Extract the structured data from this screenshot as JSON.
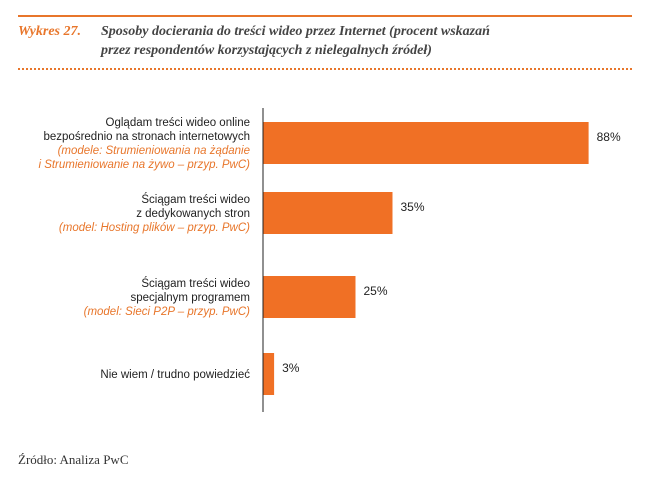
{
  "figure": {
    "label": "Wykres 27.",
    "title_line1": "Sposoby docierania do treści wideo przez Internet (procent wskazań",
    "title_line2": "przez respondentów korzystających z nielegalnych źródeł)",
    "source": "Źródło: Analiza PwC"
  },
  "colors": {
    "accent": "#e8762b",
    "bar": "#f07025",
    "text": "#222222",
    "axis": "#222222"
  },
  "chart_data": {
    "type": "bar",
    "orientation": "horizontal",
    "categories": [
      {
        "lines": [
          "Oglądam treści wideo online",
          "bezpośrednio na stronach internetowych"
        ],
        "note_lines": [
          "(modele: Strumieniowania na żądanie",
          "i Strumieniowanie na żywo – przyp. PwC)"
        ]
      },
      {
        "lines": [
          "Ściągam treści wideo",
          "z dedykowanych stron"
        ],
        "note_lines": [
          "(model: Hosting plików – przyp. PwC)"
        ]
      },
      {
        "lines": [
          "Ściągam treści wideo",
          "specjalnym programem"
        ],
        "note_lines": [
          "(model: Sieci P2P – przyp. PwC)"
        ]
      },
      {
        "lines": [
          "Nie wiem / trudno powiedzieć"
        ],
        "note_lines": []
      }
    ],
    "values": [
      88,
      35,
      25,
      3
    ],
    "value_labels": [
      "88%",
      "35%",
      "25%",
      "3%"
    ],
    "unit": "%",
    "xlim": [
      0,
      100
    ],
    "grid": false,
    "legend": "none"
  }
}
